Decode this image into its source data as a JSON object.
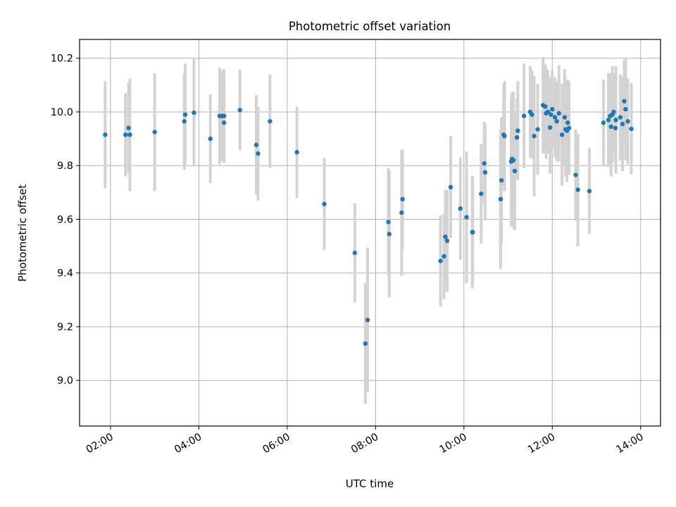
{
  "chart_data": {
    "type": "scatter",
    "title": "Photometric offset variation",
    "xlabel": "UTC time",
    "ylabel": "Photometric offset",
    "x_unit": "hour (UTC)",
    "xlim": [
      1.3,
      14.45
    ],
    "ylim": [
      8.83,
      10.27
    ],
    "xticks": [
      2,
      4,
      6,
      8,
      10,
      12,
      14
    ],
    "xtick_labels": [
      "02:00",
      "04:00",
      "06:00",
      "08:00",
      "10:00",
      "12:00",
      "14:00"
    ],
    "yticks": [
      9.0,
      9.2,
      9.4,
      9.6,
      9.8,
      10.0,
      10.2
    ],
    "ytick_labels": [
      "9.0",
      "9.2",
      "9.4",
      "9.6",
      "9.8",
      "10.0",
      "10.2"
    ],
    "grid": true,
    "marker_color": "#1f77b4",
    "errorbar_color": "#d3d3d3",
    "series": [
      {
        "x": [
          1.88,
          2.34,
          2.41,
          2.44,
          3.0,
          3.67,
          3.69,
          3.89,
          4.26,
          4.47,
          4.52,
          4.57,
          4.57,
          4.93,
          5.3,
          5.34,
          5.61,
          6.22,
          6.84,
          7.53,
          7.77,
          7.82,
          8.29,
          8.31,
          8.59,
          8.61,
          9.47,
          9.55,
          9.58,
          9.62,
          9.7,
          9.92,
          10.06,
          10.19,
          10.2,
          10.39,
          10.46,
          10.48,
          10.83,
          10.85,
          10.9,
          10.92,
          11.07,
          11.09,
          11.12,
          11.15,
          11.2,
          11.22,
          11.36,
          11.5,
          11.54,
          11.59,
          11.67,
          11.79,
          11.84,
          11.86,
          11.9,
          11.95,
          11.97,
          12.0,
          12.06,
          12.1,
          12.15,
          12.22,
          12.28,
          12.3,
          12.33,
          12.35,
          12.38,
          12.53,
          12.58,
          12.84,
          13.16,
          13.27,
          13.31,
          13.33,
          13.36,
          13.39,
          13.43,
          13.44,
          13.54,
          13.59,
          13.63,
          13.66,
          13.71,
          13.79
        ],
        "y": [
          9.915,
          9.915,
          9.94,
          9.915,
          9.925,
          9.965,
          9.99,
          9.997,
          9.9,
          9.985,
          9.985,
          9.96,
          9.985,
          10.007,
          9.877,
          9.845,
          9.965,
          9.85,
          9.657,
          9.475,
          9.137,
          9.225,
          9.59,
          9.545,
          9.625,
          9.675,
          9.445,
          9.462,
          9.535,
          9.52,
          9.72,
          9.64,
          9.608,
          9.552,
          9.552,
          9.695,
          9.808,
          9.775,
          9.675,
          9.745,
          9.915,
          9.91,
          9.815,
          9.825,
          9.82,
          9.78,
          9.905,
          9.93,
          9.985,
          10.0,
          9.99,
          9.91,
          9.935,
          10.025,
          10.02,
          9.995,
          10.0,
          9.942,
          9.99,
          10.01,
          9.98,
          9.965,
          9.995,
          9.915,
          9.98,
          9.935,
          9.93,
          9.96,
          9.94,
          9.765,
          9.71,
          9.705,
          9.96,
          9.97,
          9.985,
          9.945,
          9.99,
          10.0,
          9.94,
          9.97,
          9.98,
          9.955,
          10.04,
          10.01,
          9.965,
          9.937
        ],
        "yerr": [
          0.2,
          0.155,
          0.17,
          0.21,
          0.22,
          0.18,
          0.19,
          0.2,
          0.165,
          0.18,
          0.17,
          0.15,
          0.175,
          0.15,
          0.185,
          0.175,
          0.175,
          0.17,
          0.172,
          0.185,
          0.225,
          0.27,
          0.2,
          0.235,
          0.235,
          0.185,
          0.17,
          0.16,
          0.175,
          0.19,
          0.19,
          0.19,
          0.245,
          0.21,
          0.195,
          0.185,
          0.155,
          0.18,
          0.26,
          0.235,
          0.19,
          0.205,
          0.24,
          0.25,
          0.255,
          0.22,
          0.145,
          0.185,
          0.195,
          0.17,
          0.165,
          0.225,
          0.17,
          0.18,
          0.16,
          0.17,
          0.155,
          0.17,
          0.14,
          0.145,
          0.15,
          0.15,
          0.18,
          0.19,
          0.18,
          0.175,
          0.19,
          0.16,
          0.175,
          0.17,
          0.21,
          0.16,
          0.16,
          0.175,
          0.16,
          0.185,
          0.18,
          0.145,
          0.12,
          0.2,
          0.16,
          0.175,
          0.155,
          0.19,
          0.16,
          0.17
        ]
      }
    ]
  }
}
